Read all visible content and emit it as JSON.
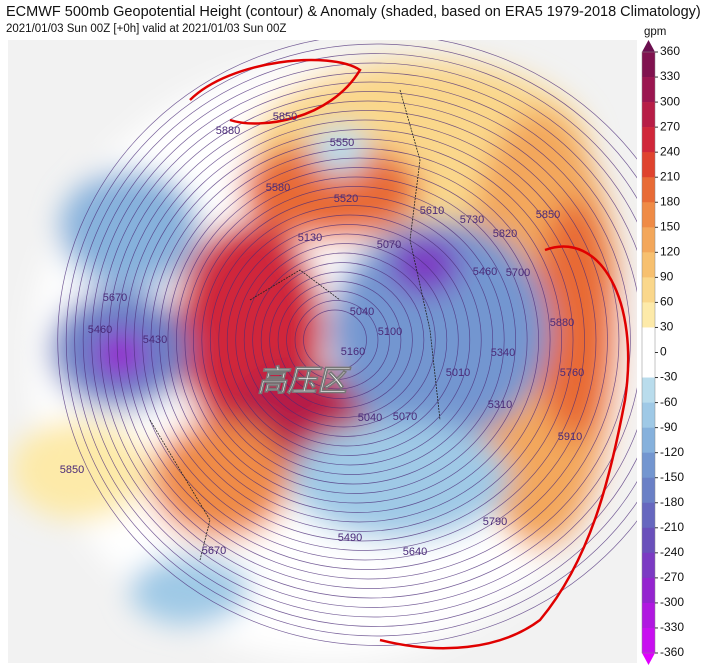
{
  "header": {
    "title": "ECMWF 500mb Geopotential Height (contour) & Anomaly (shaded, based on ERA5 1979-2018 Climatology)",
    "subtitle": "2021/01/03 Sun 00Z [+0h] valid at 2021/01/03 Sun 00Z"
  },
  "annotation": "高压区",
  "contour_labels": [
    "5880",
    "5850",
    "5550",
    "5520",
    "5580",
    "5610",
    "5730",
    "5820",
    "5850",
    "5700",
    "5460",
    "5880",
    "5760",
    "5340",
    "5910",
    "5310",
    "5790",
    "5640",
    "5490",
    "5670",
    "5850",
    "5670",
    "5460",
    "5430",
    "5130",
    "5070",
    "5040",
    "5100",
    "5010",
    "5160",
    "5070",
    "5040"
  ],
  "colorbar": {
    "unit": "gpm",
    "ticks": [
      360,
      330,
      300,
      270,
      240,
      210,
      180,
      150,
      120,
      90,
      60,
      30,
      0,
      -30,
      -60,
      -90,
      -120,
      -150,
      -180,
      -210,
      -240,
      -270,
      -300,
      -330,
      -360
    ],
    "colors": [
      "#6b0f4f",
      "#80124f",
      "#9b1650",
      "#b71d46",
      "#d0273a",
      "#df432e",
      "#e86b36",
      "#ef8b46",
      "#f3a75b",
      "#f7c06f",
      "#fad78b",
      "#fdeaa9",
      "#ffffff",
      "#ffffff",
      "#b9dcec",
      "#9fc9e6",
      "#86b1dc",
      "#7396d0",
      "#6a80c6",
      "#6667bf",
      "#6a50bb",
      "#7b3ac3",
      "#9424cf",
      "#b018e0",
      "#c80ff0",
      "#e000ff"
    ]
  }
}
